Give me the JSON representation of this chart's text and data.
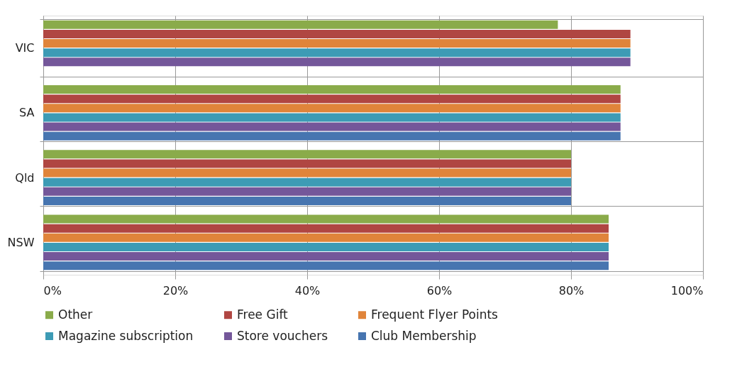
{
  "chart_data": {
    "type": "bar",
    "orientation": "horizontal",
    "categories": [
      "VIC",
      "SA",
      "Qld",
      "NSW"
    ],
    "series": [
      {
        "name": "Other",
        "color": "#8aab4a",
        "values": [
          78,
          87.5,
          80,
          85.7
        ]
      },
      {
        "name": "Free Gift",
        "color": "#b04642",
        "values": [
          89,
          87.5,
          80,
          85.7
        ]
      },
      {
        "name": "Frequent Flyer Points",
        "color": "#e0843a",
        "values": [
          89,
          87.5,
          80,
          85.7
        ]
      },
      {
        "name": "Magazine subscription",
        "color": "#3d9bb5",
        "values": [
          89,
          87.5,
          80,
          85.7
        ]
      },
      {
        "name": "Store vouchers",
        "color": "#74579a",
        "values": [
          89,
          87.5,
          80,
          85.7
        ]
      },
      {
        "name": "Club Membership",
        "color": "#4775b0",
        "values": [
          null,
          87.5,
          80,
          85.7
        ]
      }
    ],
    "xlim": [
      0,
      100
    ],
    "xticks": [
      {
        "value": 0,
        "label": "0%"
      },
      {
        "value": 20,
        "label": "20%"
      },
      {
        "value": 40,
        "label": "40%"
      },
      {
        "value": 60,
        "label": "60%"
      },
      {
        "value": 80,
        "label": "80%"
      },
      {
        "value": 100,
        "label": "100%"
      }
    ],
    "grid": true,
    "legend": "bottom"
  }
}
